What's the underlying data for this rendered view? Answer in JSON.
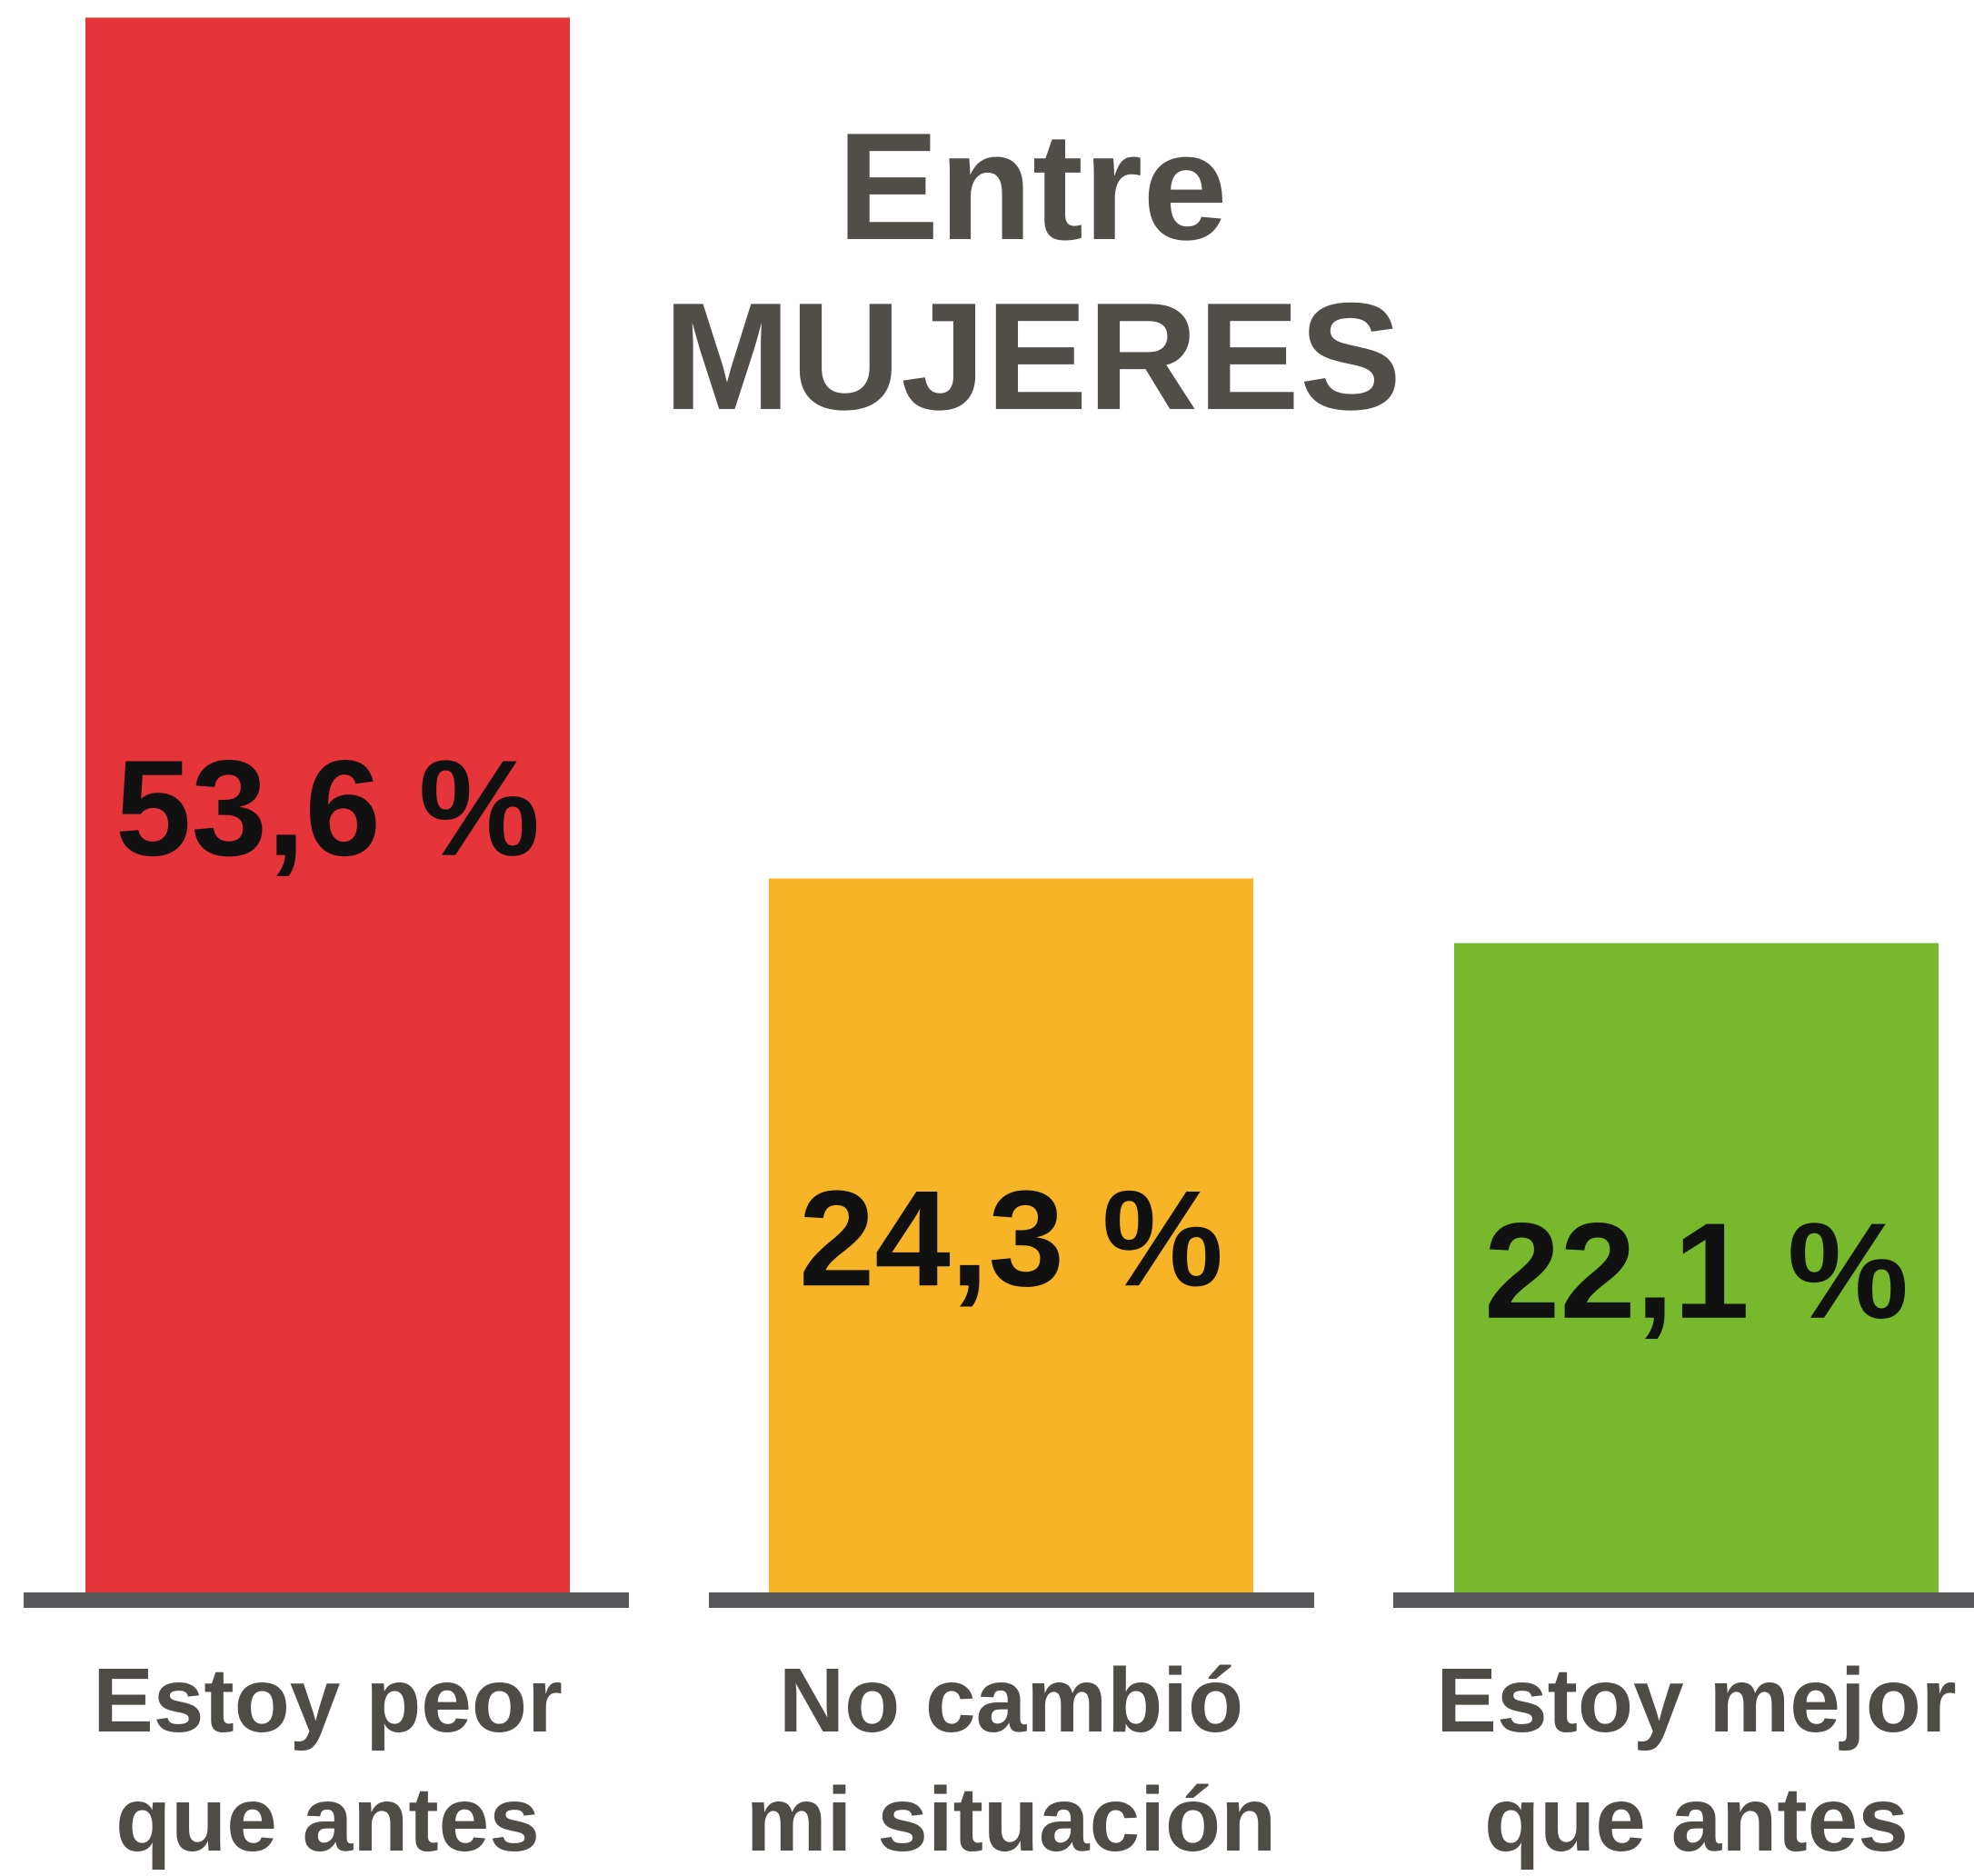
{
  "chart_data": {
    "type": "bar",
    "title": "Entre\nMUJERES",
    "categories": [
      "Estoy peor\nque antes",
      "No cambió\nmi situación",
      "Estoy mejor\nque antes"
    ],
    "values": [
      53.6,
      24.3,
      22.1
    ],
    "value_labels": [
      "53,6 %",
      "24,3 %",
      "22,1 %"
    ],
    "colors": [
      "#e5343a",
      "#f7b427",
      "#77b82c"
    ],
    "ylim": [
      0,
      54.2
    ]
  }
}
